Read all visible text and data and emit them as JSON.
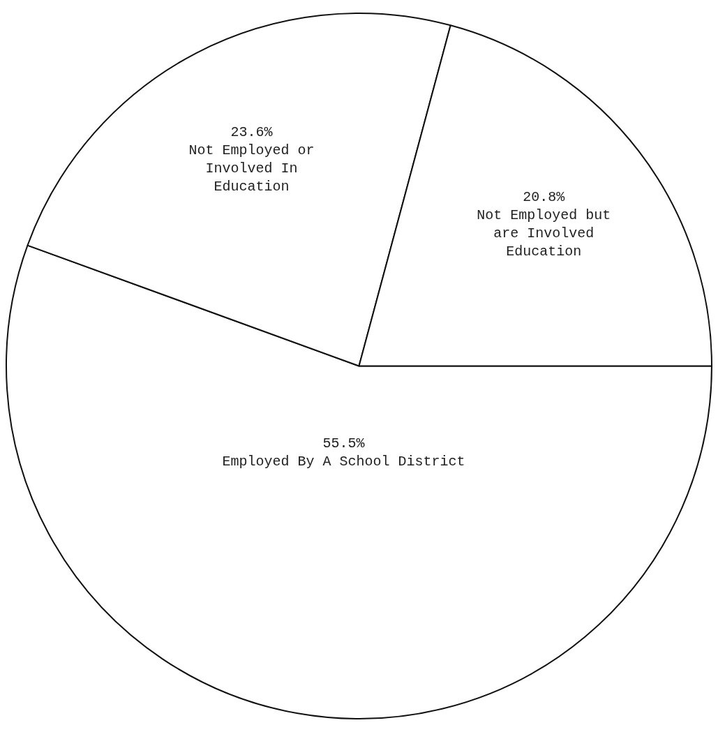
{
  "chart_data": {
    "type": "pie",
    "categories": [
      "Employed By A School District",
      "Not Employed or Involved In Education",
      "Not Employed but are Involved Education"
    ],
    "values": [
      55.5,
      23.6,
      20.8
    ],
    "value_labels": [
      "55.5%",
      "23.6%",
      "20.8%"
    ],
    "colors": [
      "#ffffff",
      "#ffffff",
      "#ffffff"
    ],
    "legend": false
  }
}
